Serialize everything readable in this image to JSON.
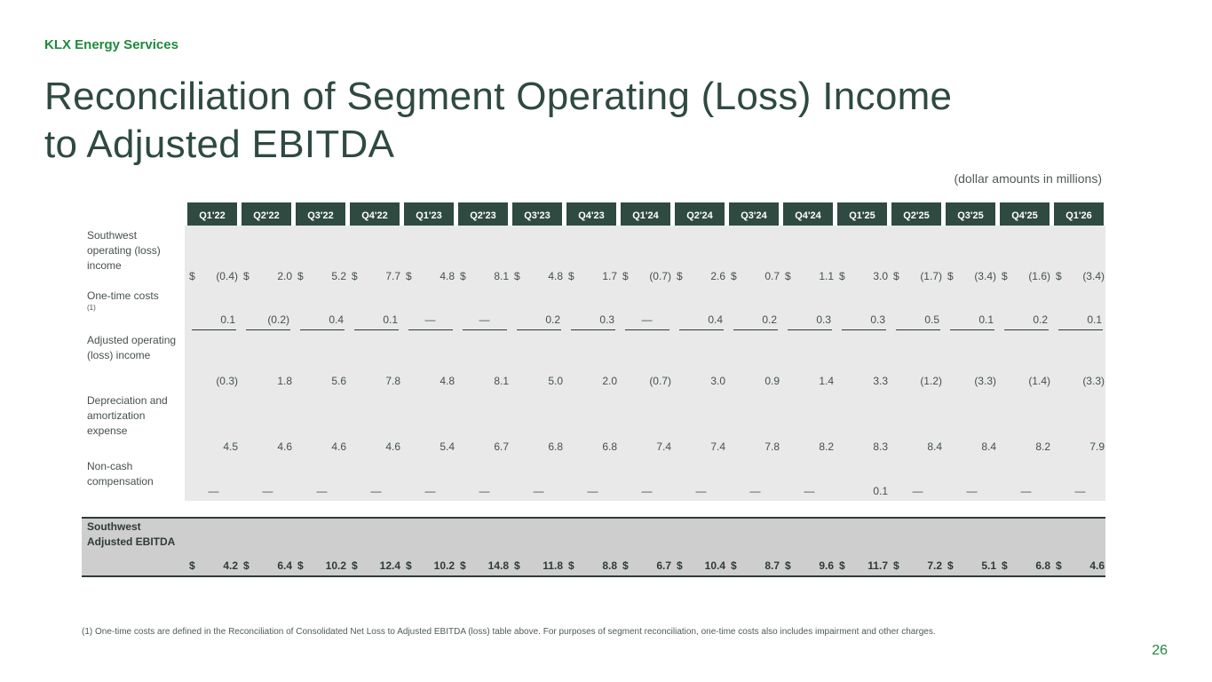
{
  "header": {
    "brand": "KLX Energy Services",
    "title_line1": "Reconciliation of Segment Operating (Loss) Income",
    "title_line2": "to Adjusted EBITDA",
    "units": "(dollar amounts in millions)"
  },
  "table": {
    "quarters": [
      "Q1'22",
      "Q2'22",
      "Q3'22",
      "Q4'22",
      "Q1'23",
      "Q2'23",
      "Q3'23",
      "Q4'23",
      "Q1'24",
      "Q2'24",
      "Q3'24",
      "Q4'24",
      "Q1'25",
      "Q2'25",
      "Q3'25",
      "Q4'25",
      "Q1'26"
    ],
    "rows": [
      {
        "label": "Southwest operating (loss) income",
        "footnote_marker": "",
        "dollar": true,
        "values": [
          "(0.4)",
          "2.0",
          "5.2",
          "7.7",
          "4.8",
          "8.1",
          "4.8",
          "1.7",
          "(0.7)",
          "2.6",
          "0.7",
          "1.1",
          "3.0",
          "(1.7)",
          "(3.4)",
          "(1.6)",
          "(3.4)"
        ]
      },
      {
        "label": "One-time costs",
        "footnote_marker": "(1)",
        "dollar": false,
        "values": [
          "0.1",
          "(0.2)",
          "0.4",
          "0.1",
          "—",
          "—",
          "0.2",
          "0.3",
          "—",
          "0.4",
          "0.2",
          "0.3",
          "0.3",
          "0.5",
          "0.1",
          "0.2",
          "0.1"
        ]
      },
      {
        "label": "Adjusted operating (loss) income",
        "footnote_marker": "",
        "dollar": false,
        "values": [
          "(0.3)",
          "1.8",
          "5.6",
          "7.8",
          "4.8",
          "8.1",
          "5.0",
          "2.0",
          "(0.7)",
          "3.0",
          "0.9",
          "1.4",
          "3.3",
          "(1.2)",
          "(3.3)",
          "(1.4)",
          "(3.3)"
        ]
      },
      {
        "label": "Depreciation and amortization expense",
        "footnote_marker": "",
        "dollar": false,
        "values": [
          "4.5",
          "4.6",
          "4.6",
          "4.6",
          "5.4",
          "6.7",
          "6.8",
          "6.8",
          "7.4",
          "7.4",
          "7.8",
          "8.2",
          "8.3",
          "8.4",
          "8.4",
          "8.2",
          "7.9"
        ]
      },
      {
        "label": "Non-cash compensation",
        "footnote_marker": "",
        "dollar": false,
        "values": [
          "—",
          "—",
          "—",
          "—",
          "—",
          "—",
          "—",
          "—",
          "—",
          "—",
          "—",
          "—",
          "0.1",
          "—",
          "—",
          "—",
          "—"
        ]
      }
    ],
    "total": {
      "label": "Southwest Adjusted EBITDA",
      "values": [
        "4.2",
        "6.4",
        "10.2",
        "12.4",
        "10.2",
        "14.8",
        "11.8",
        "8.8",
        "6.7",
        "10.4",
        "8.7",
        "9.6",
        "11.7",
        "7.2",
        "5.1",
        "6.8",
        "4.6"
      ]
    },
    "currency_symbol": "$"
  },
  "footnote": "(1) One-time costs are defined in the Reconciliation of Consolidated Net Loss to Adjusted EBITDA (loss) table above. For purposes of segment reconciliation, one-time costs also includes impairment and other charges.",
  "page_number": "26",
  "colors": {
    "brand_green": "#1f8a3c",
    "header_fill": "#2f4a40",
    "row_fill": "#e8e9e8",
    "total_fill": "#cdcecd"
  }
}
